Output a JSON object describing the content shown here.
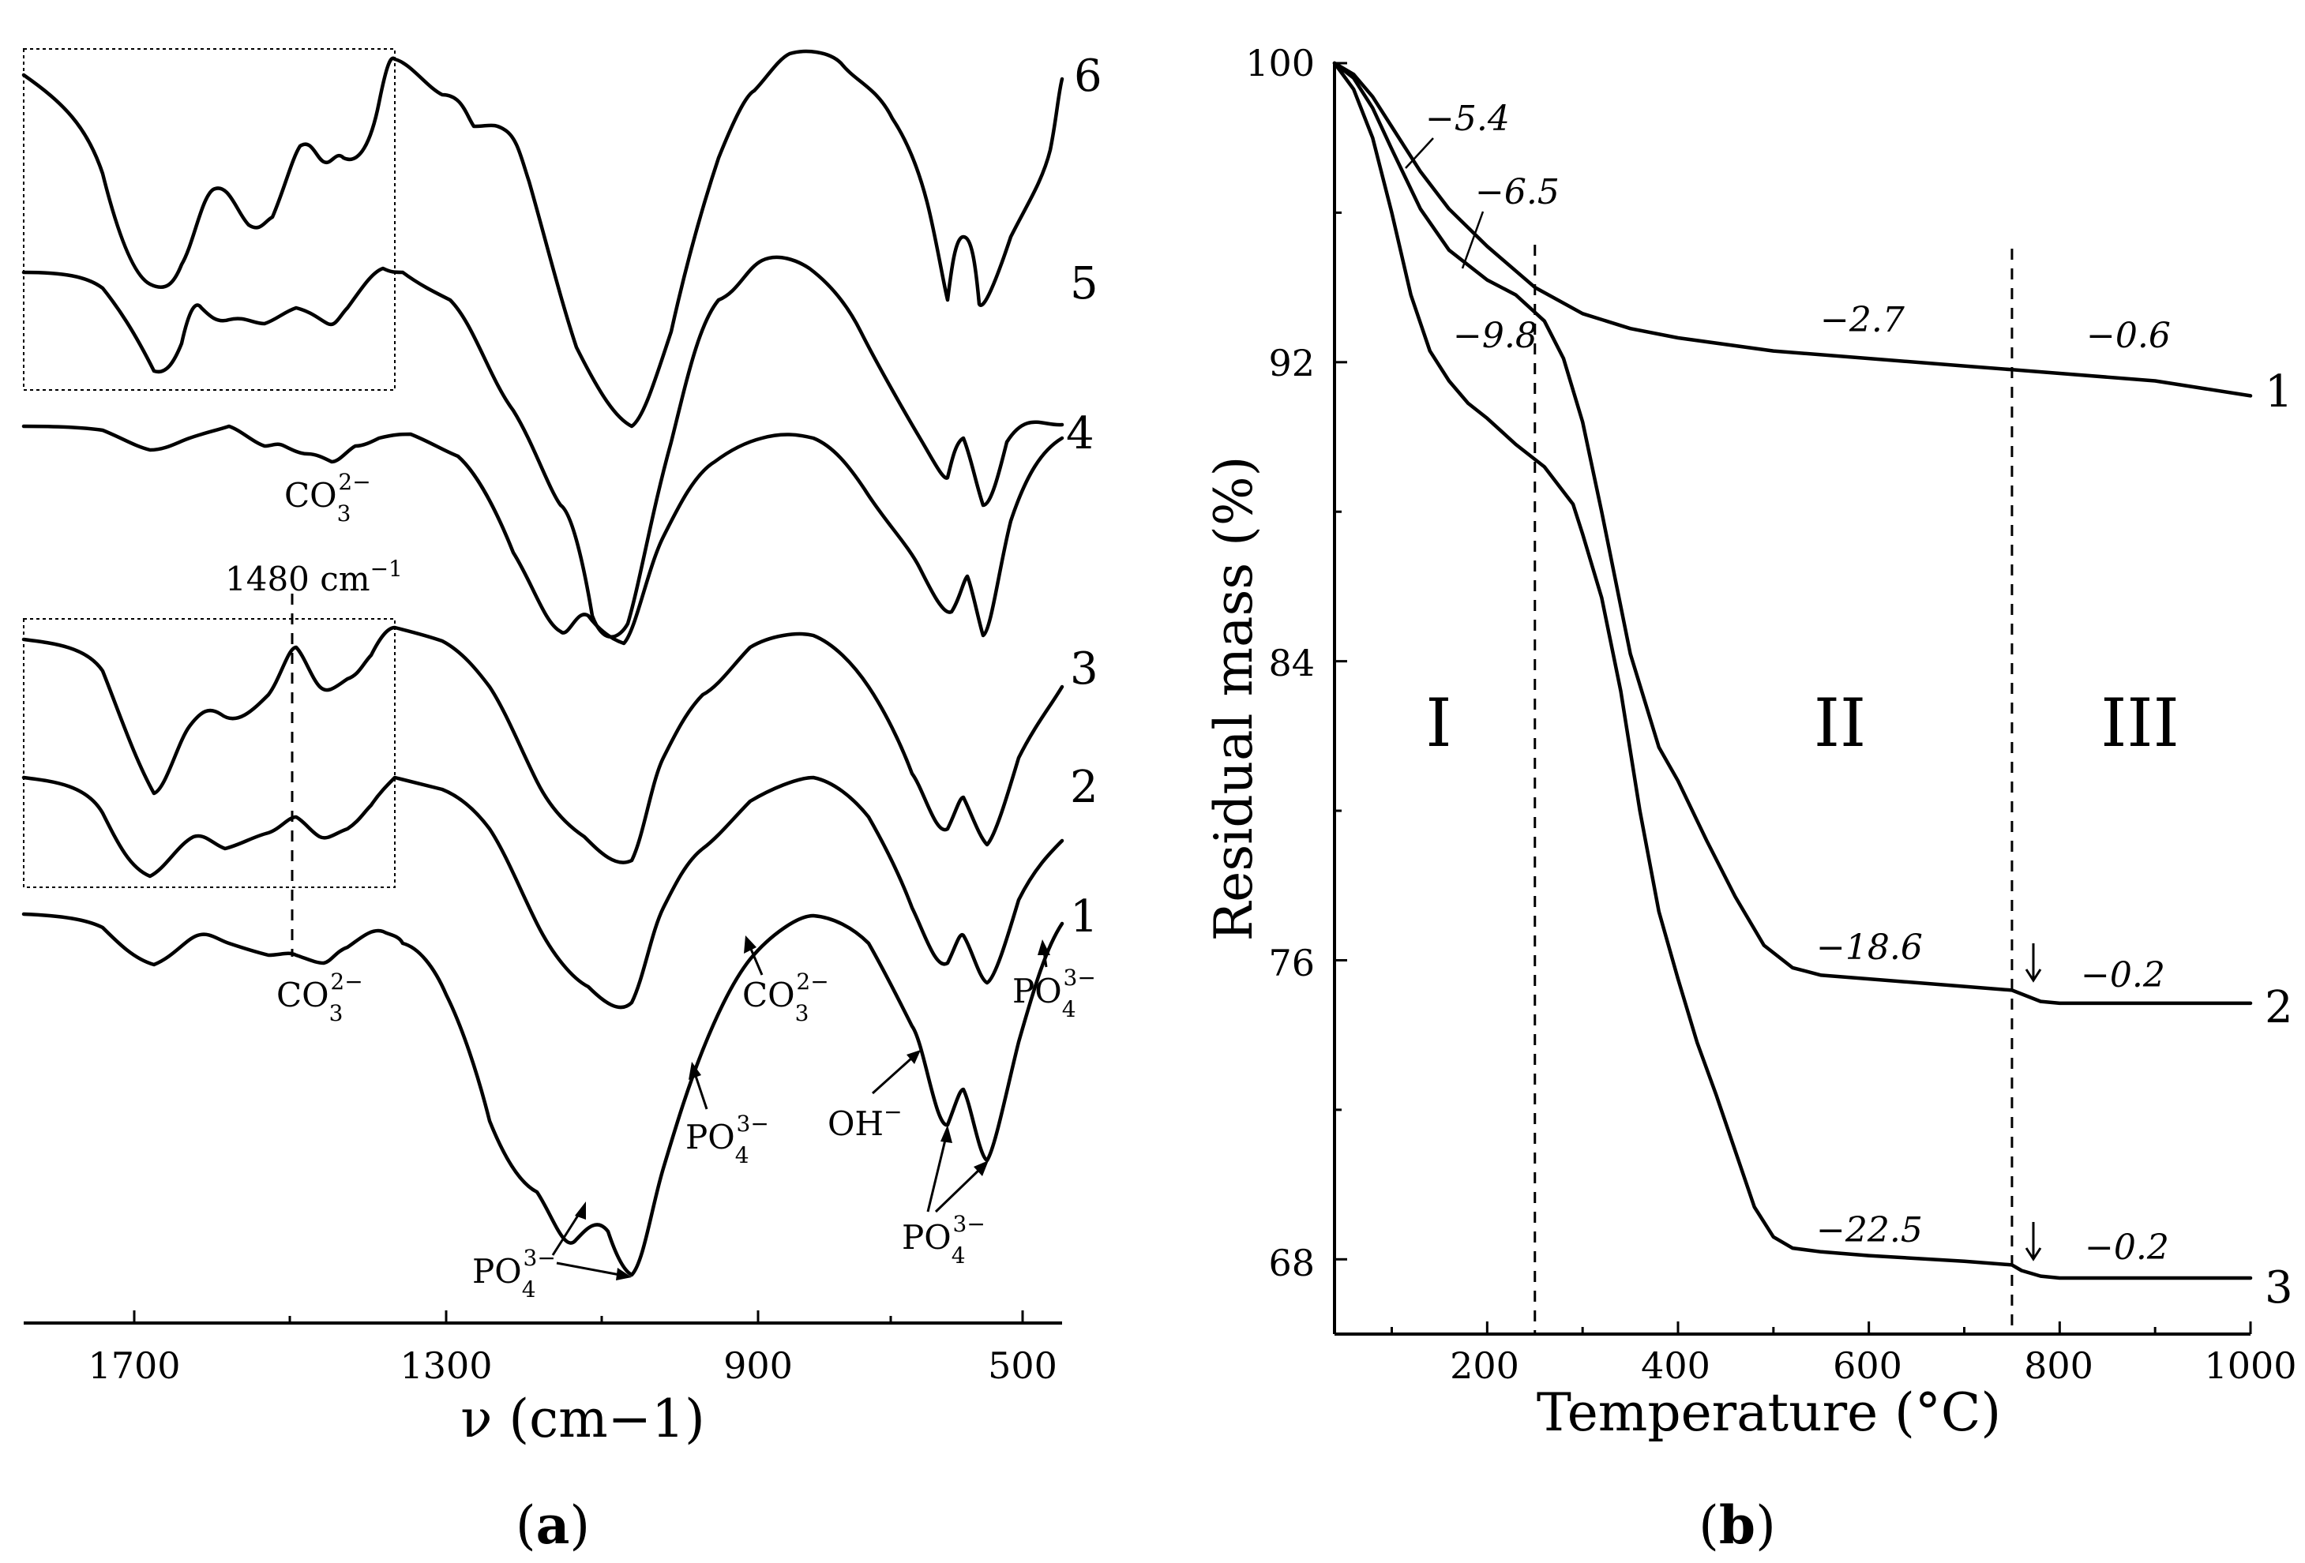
{
  "chart_data": [
    {
      "panel": "a",
      "type": "line",
      "title": "",
      "xlabel": "ν (cm−1)",
      "xticks": [
        "1700",
        "1300",
        "900",
        "500"
      ],
      "xlim": [
        1900,
        450
      ],
      "series": [
        {
          "name": "1",
          "x": [
            1900,
            1800,
            1740,
            1680,
            1620,
            1560,
            1520,
            1480,
            1440,
            1400,
            1340,
            1300,
            1250,
            1200,
            1160,
            1120,
            1100,
            1080,
            1060,
            1045,
            1030,
            1000,
            970,
            940,
            900,
            870,
            840,
            800,
            760,
            720,
            680,
            640,
            605,
            590,
            575,
            565,
            555,
            540,
            525,
            510,
            490,
            470,
            455
          ],
          "y": [
            8,
            5,
            10,
            32,
            8,
            16,
            36,
            38,
            34,
            24,
            26,
            40,
            88,
            185,
            310,
            470,
            505,
            525,
            590,
            630,
            580,
            430,
            300,
            180,
            80,
            30,
            10,
            0,
            -4,
            -2,
            5,
            25,
            115,
            175,
            210,
            215,
            170,
            200,
            220,
            180,
            115,
            40,
            25
          ]
        }
      ],
      "labels": {
        "curve_numbers": [
          "6",
          "5",
          "4",
          "3",
          "2",
          "1"
        ],
        "co3_top": "CO",
        "co3_bottom": "CO",
        "co3_1": "CO",
        "co3_sub": "3",
        "co3_sup": "2−",
        "po4": "PO",
        "po4_sub": "4",
        "po4_sup": "3−",
        "oh": "OH",
        "oh_sup": "−",
        "wn1480": "1480 cm",
        "wn1480_sup": "−1"
      }
    },
    {
      "panel": "b",
      "type": "line",
      "title": "",
      "xlabel": "Temperature (°C)",
      "ylabel": "Residual mass (%)",
      "xlim": [
        40,
        1000
      ],
      "ylim": [
        66,
        100
      ],
      "xticks": [
        "200",
        "400",
        "600",
        "800",
        "1000"
      ],
      "yticks": [
        "100",
        "92",
        "84",
        "76",
        "68"
      ],
      "series": [
        {
          "name": "1",
          "x": [
            40,
            60,
            80,
            100,
            130,
            160,
            200,
            250,
            300,
            350,
            400,
            500,
            600,
            700,
            750,
            800,
            900,
            1000
          ],
          "y": [
            100,
            99.7,
            99.1,
            98.3,
            97.1,
            96.1,
            95.1,
            94.0,
            93.3,
            92.9,
            92.65,
            92.3,
            92.1,
            91.9,
            91.8,
            91.7,
            91.5,
            91.1
          ]
        },
        {
          "name": "2",
          "x": [
            40,
            60,
            80,
            100,
            130,
            160,
            200,
            230,
            260,
            280,
            300,
            320,
            350,
            380,
            400,
            430,
            460,
            490,
            520,
            550,
            600,
            700,
            750,
            760,
            780,
            800,
            900,
            1000
          ],
          "y": [
            100,
            99.6,
            98.8,
            97.7,
            96.1,
            95.0,
            94.2,
            93.8,
            93.1,
            92.1,
            90.4,
            88.0,
            84.2,
            81.7,
            80.8,
            79.2,
            77.7,
            76.4,
            75.8,
            75.6,
            75.5,
            75.3,
            75.2,
            75.1,
            74.9,
            74.85,
            74.85,
            74.85
          ]
        },
        {
          "name": "3",
          "x": [
            40,
            60,
            80,
            100,
            120,
            140,
            160,
            180,
            200,
            230,
            260,
            290,
            300,
            320,
            340,
            360,
            380,
            400,
            420,
            440,
            460,
            480,
            500,
            520,
            550,
            600,
            700,
            750,
            760,
            780,
            800,
            900,
            1000
          ],
          "y": [
            100,
            99.3,
            98.0,
            96.0,
            93.8,
            92.3,
            91.5,
            90.9,
            90.5,
            89.8,
            89.2,
            88.2,
            87.4,
            85.7,
            83.2,
            80.0,
            77.3,
            75.5,
            73.8,
            72.4,
            70.9,
            69.4,
            68.6,
            68.3,
            68.2,
            68.1,
            67.95,
            67.85,
            67.7,
            67.55,
            67.5,
            67.5,
            67.5
          ]
        }
      ],
      "mass_losses": {
        "c1_I": "−5.4",
        "c2_I": "−6.5",
        "c3_I": "−9.8",
        "c1_II": "−2.7",
        "c2_II": "−18.6",
        "c3_II": "−22.5",
        "c1_III": "−0.6",
        "c2_III": "−0.2",
        "c3_III": "−0.2"
      },
      "regions": [
        "I",
        "II",
        "III"
      ],
      "region_boundaries": [
        250,
        750
      ],
      "series_labels": [
        "1",
        "2",
        "3"
      ]
    }
  ],
  "panel_labels": {
    "a": "a",
    "b": "b"
  }
}
